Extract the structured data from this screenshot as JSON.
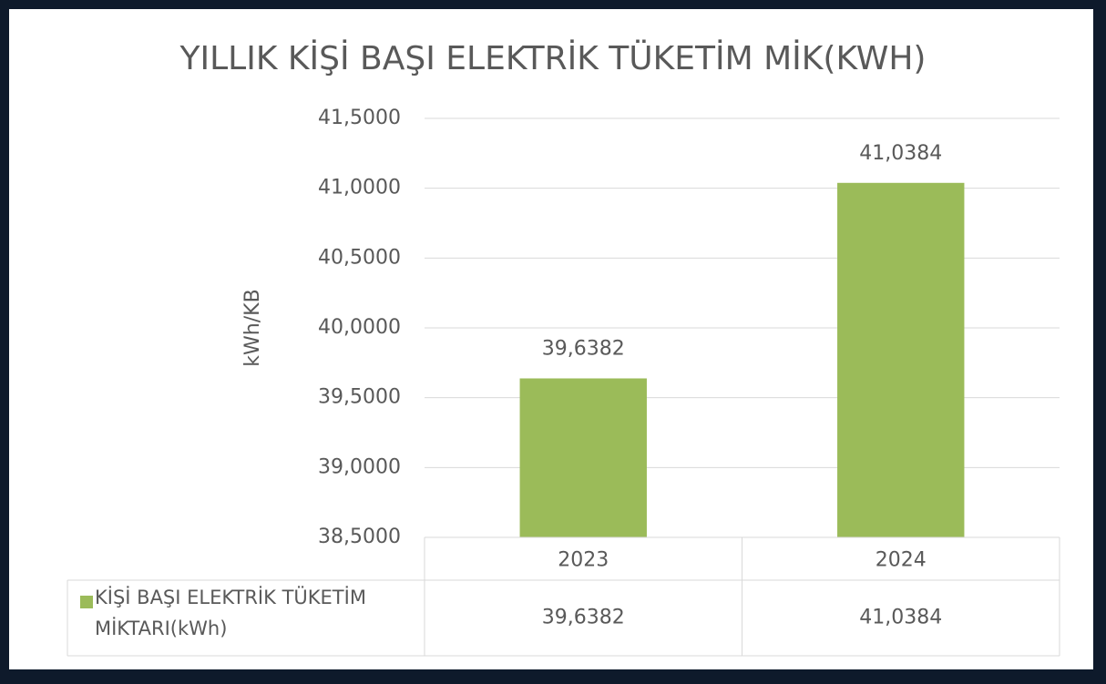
{
  "chart_data": {
    "type": "bar",
    "title": "YILLIK KİŞİ BAŞI ELEKTRİK TÜKETİM MİK(KWH)",
    "y_label": "kWh/KB",
    "categories": [
      "2023",
      "2024"
    ],
    "series": [
      {
        "name": "KİŞİ BAŞI ELEKTRİK TÜKETİM MİKTARI(kWh)",
        "color": "#9bbb59",
        "values": [
          39.6382,
          41.0384
        ],
        "value_labels": [
          "39,6382",
          "41,0384"
        ]
      }
    ],
    "ylim": [
      38.5,
      41.5
    ],
    "yticks": [
      {
        "value": 38.5,
        "label": "38,5000"
      },
      {
        "value": 39,
        "label": "39,0000"
      },
      {
        "value": 39.5,
        "label": "39,5000"
      },
      {
        "value": 40,
        "label": "40,0000"
      },
      {
        "value": 40.5,
        "label": "40,5000"
      },
      {
        "value": 41,
        "label": "41,0000"
      },
      {
        "value": 41.5,
        "label": "41,5000"
      }
    ],
    "grid": true,
    "data_table": true
  }
}
